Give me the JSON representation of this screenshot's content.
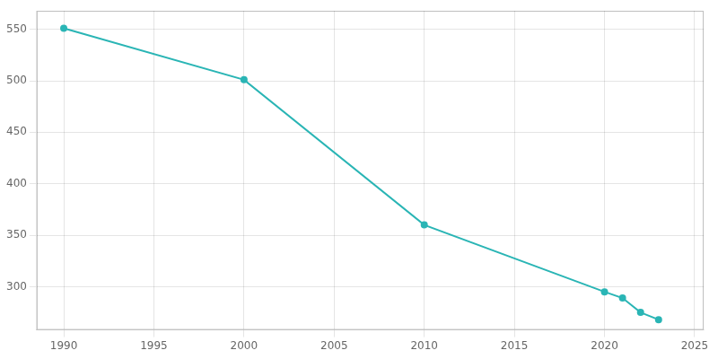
{
  "chart_data": {
    "type": "line",
    "x": [
      1990,
      2000,
      2010,
      2020,
      2021,
      2022,
      2023
    ],
    "values": [
      551,
      501,
      360,
      295,
      289,
      275,
      268
    ],
    "color": "#2ab5b5",
    "marker": "o",
    "xlim": [
      1988.5,
      2025.5
    ],
    "ylim": [
      258,
      568
    ],
    "xticks": [
      1990,
      1995,
      2000,
      2005,
      2010,
      2015,
      2020,
      2025
    ],
    "yticks": [
      300,
      350,
      400,
      450,
      500,
      550
    ],
    "grid": true
  }
}
